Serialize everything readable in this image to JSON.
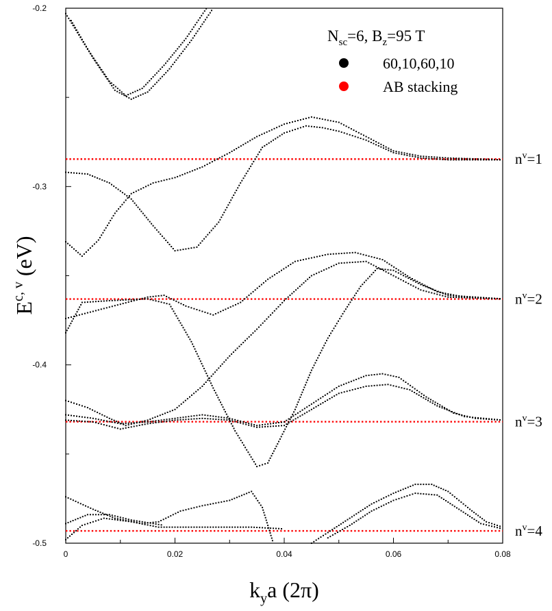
{
  "chart_data": {
    "type": "scatter",
    "xlabel": {
      "main": "k",
      "sub": "y",
      "rest": "a (2π)"
    },
    "ylabel": {
      "main": "E",
      "sup": "c, v",
      "rest": " (eV)"
    },
    "xlim": [
      0,
      0.08
    ],
    "ylim": [
      -0.5,
      -0.2
    ],
    "x_ticks": [
      "0",
      "0.02",
      "0.04",
      "0.06",
      "0.08"
    ],
    "x_tick_values": [
      0,
      0.02,
      0.04,
      0.06,
      0.08
    ],
    "y_ticks": [
      "-0.2",
      "-0.3",
      "-0.4",
      "-0.5"
    ],
    "y_tick_values": [
      -0.2,
      -0.3,
      -0.4,
      -0.5
    ],
    "grid": false,
    "legend": {
      "placement": "top-right",
      "title": {
        "n": "N",
        "nsub": "sc",
        "mid": "=6, B",
        "bsub": "z",
        "end": "=95 T"
      },
      "entries": [
        {
          "label": "60,10,60,10",
          "color": "#000000"
        },
        {
          "label": "AB stacking",
          "color": "#ff0000"
        }
      ]
    },
    "level_labels": [
      {
        "base": "n",
        "sup": "v",
        "rest": "=1",
        "energy": -0.2846
      },
      {
        "base": "n",
        "sup": "v",
        "rest": "=2",
        "energy": -0.3631
      },
      {
        "base": "n",
        "sup": "v",
        "rest": "=3",
        "energy": -0.4319
      },
      {
        "base": "n",
        "sup": "v",
        "rest": "=4",
        "energy": -0.4931
      }
    ],
    "series": [
      {
        "name": "60,10,60,10",
        "color": "#000000",
        "curves": [
          [
            [
              0,
              -0.203
            ],
            [
              0.004,
              -0.223
            ],
            [
              0.008,
              -0.241
            ],
            [
              0.011,
              -0.249
            ],
            [
              0.014,
              -0.245
            ],
            [
              0.018,
              -0.232
            ],
            [
              0.022,
              -0.217
            ],
            [
              0.026,
              -0.199
            ]
          ],
          [
            [
              0.001,
              -0.207
            ],
            [
              0.005,
              -0.228
            ],
            [
              0.009,
              -0.246
            ],
            [
              0.012,
              -0.251
            ],
            [
              0.015,
              -0.247
            ],
            [
              0.019,
              -0.234
            ],
            [
              0.023,
              -0.218
            ],
            [
              0.027,
              -0.2
            ]
          ],
          [
            [
              0,
              -0.292
            ],
            [
              0.004,
              -0.293
            ],
            [
              0.008,
              -0.298
            ],
            [
              0.012,
              -0.307
            ],
            [
              0.016,
              -0.322
            ],
            [
              0.02,
              -0.336
            ],
            [
              0.024,
              -0.334
            ],
            [
              0.028,
              -0.32
            ],
            [
              0.032,
              -0.298
            ],
            [
              0.036,
              -0.278
            ],
            [
              0.04,
              -0.27
            ],
            [
              0.044,
              -0.266
            ],
            [
              0.047,
              -0.267
            ],
            [
              0.05,
              -0.269
            ],
            [
              0.055,
              -0.274
            ],
            [
              0.06,
              -0.281
            ],
            [
              0.065,
              -0.284
            ],
            [
              0.07,
              -0.285
            ],
            [
              0.08,
              -0.285
            ]
          ],
          [
            [
              0,
              -0.331
            ],
            [
              0.003,
              -0.339
            ],
            [
              0.006,
              -0.33
            ],
            [
              0.009,
              -0.315
            ],
            [
              0.012,
              -0.304
            ],
            [
              0.016,
              -0.298
            ],
            [
              0.02,
              -0.295
            ],
            [
              0.025,
              -0.289
            ],
            [
              0.03,
              -0.281
            ],
            [
              0.035,
              -0.272
            ],
            [
              0.04,
              -0.265
            ],
            [
              0.045,
              -0.261
            ],
            [
              0.05,
              -0.264
            ],
            [
              0.055,
              -0.272
            ],
            [
              0.06,
              -0.28
            ],
            [
              0.065,
              -0.283
            ],
            [
              0.07,
              -0.284
            ],
            [
              0.08,
              -0.285
            ]
          ],
          [
            [
              0,
              -0.374
            ],
            [
              0.005,
              -0.37
            ],
            [
              0.01,
              -0.366
            ],
            [
              0.015,
              -0.362
            ],
            [
              0.018,
              -0.361
            ],
            [
              0.022,
              -0.367
            ],
            [
              0.027,
              -0.372
            ],
            [
              0.032,
              -0.365
            ],
            [
              0.037,
              -0.352
            ],
            [
              0.042,
              -0.342
            ],
            [
              0.048,
              -0.338
            ],
            [
              0.053,
              -0.337
            ],
            [
              0.058,
              -0.341
            ],
            [
              0.063,
              -0.351
            ],
            [
              0.068,
              -0.359
            ],
            [
              0.073,
              -0.362
            ],
            [
              0.08,
              -0.363
            ]
          ],
          [
            [
              0,
              -0.382
            ],
            [
              0.003,
              -0.365
            ],
            [
              0.008,
              -0.364
            ],
            [
              0.015,
              -0.363
            ],
            [
              0.019,
              -0.366
            ],
            [
              0.023,
              -0.387
            ],
            [
              0.027,
              -0.413
            ],
            [
              0.031,
              -0.437
            ],
            [
              0.035,
              -0.457
            ],
            [
              0.037,
              -0.455
            ],
            [
              0.039,
              -0.443
            ],
            [
              0.042,
              -0.425
            ],
            [
              0.045,
              -0.403
            ],
            [
              0.048,
              -0.385
            ],
            [
              0.051,
              -0.37
            ],
            [
              0.054,
              -0.356
            ],
            [
              0.057,
              -0.346
            ],
            [
              0.06,
              -0.347
            ],
            [
              0.065,
              -0.355
            ],
            [
              0.07,
              -0.361
            ],
            [
              0.08,
              -0.363
            ]
          ],
          [
            [
              0,
              -0.42
            ],
            [
              0.004,
              -0.424
            ],
            [
              0.008,
              -0.43
            ],
            [
              0.011,
              -0.434
            ],
            [
              0.015,
              -0.431
            ],
            [
              0.02,
              -0.425
            ],
            [
              0.025,
              -0.412
            ],
            [
              0.03,
              -0.395
            ],
            [
              0.035,
              -0.38
            ],
            [
              0.04,
              -0.364
            ],
            [
              0.045,
              -0.35
            ],
            [
              0.05,
              -0.343
            ],
            [
              0.055,
              -0.342
            ],
            [
              0.06,
              -0.35
            ],
            [
              0.065,
              -0.358
            ],
            [
              0.07,
              -0.362
            ],
            [
              0.08,
              -0.363
            ]
          ],
          [
            [
              0,
              -0.428
            ],
            [
              0.005,
              -0.43
            ],
            [
              0.01,
              -0.433
            ],
            [
              0.015,
              -0.432
            ],
            [
              0.02,
              -0.43
            ],
            [
              0.025,
              -0.428
            ],
            [
              0.03,
              -0.43
            ],
            [
              0.035,
              -0.434
            ],
            [
              0.04,
              -0.432
            ],
            [
              0.045,
              -0.422
            ],
            [
              0.05,
              -0.412
            ],
            [
              0.055,
              -0.406
            ],
            [
              0.058,
              -0.405
            ],
            [
              0.061,
              -0.407
            ],
            [
              0.066,
              -0.418
            ],
            [
              0.071,
              -0.427
            ],
            [
              0.075,
              -0.43
            ],
            [
              0.08,
              -0.431
            ]
          ],
          [
            [
              0,
              -0.431
            ],
            [
              0.005,
              -0.432
            ],
            [
              0.01,
              -0.436
            ],
            [
              0.015,
              -0.433
            ],
            [
              0.02,
              -0.431
            ],
            [
              0.025,
              -0.43
            ],
            [
              0.03,
              -0.431
            ],
            [
              0.035,
              -0.435
            ],
            [
              0.04,
              -0.434
            ],
            [
              0.045,
              -0.425
            ],
            [
              0.05,
              -0.416
            ],
            [
              0.055,
              -0.412
            ],
            [
              0.059,
              -0.411
            ],
            [
              0.063,
              -0.414
            ],
            [
              0.068,
              -0.423
            ],
            [
              0.073,
              -0.429
            ],
            [
              0.08,
              -0.431
            ]
          ],
          [
            [
              0,
              -0.474
            ],
            [
              0.005,
              -0.481
            ],
            [
              0.009,
              -0.486
            ],
            [
              0.014,
              -0.489
            ],
            [
              0.017,
              -0.488
            ],
            [
              0.021,
              -0.482
            ],
            [
              0.025,
              -0.479
            ],
            [
              0.03,
              -0.476
            ],
            [
              0.034,
              -0.471
            ],
            [
              0.036,
              -0.48
            ],
            [
              0.038,
              -0.5
            ]
          ],
          [
            [
              0,
              -0.489
            ],
            [
              0.004,
              -0.484
            ],
            [
              0.008,
              -0.484
            ],
            [
              0.012,
              -0.487
            ],
            [
              0.016,
              -0.489
            ],
            [
              0.018,
              -0.49
            ]
          ],
          [
            [
              0,
              -0.498
            ],
            [
              0.003,
              -0.49
            ],
            [
              0.007,
              -0.486
            ],
            [
              0.012,
              -0.488
            ],
            [
              0.017,
              -0.491
            ],
            [
              0.022,
              -0.491
            ],
            [
              0.028,
              -0.491
            ],
            [
              0.034,
              -0.491
            ],
            [
              0.04,
              -0.492
            ]
          ],
          [
            [
              0.045,
              -0.5
            ],
            [
              0.048,
              -0.494
            ],
            [
              0.052,
              -0.486
            ],
            [
              0.056,
              -0.478
            ],
            [
              0.06,
              -0.472
            ],
            [
              0.064,
              -0.467
            ],
            [
              0.067,
              -0.467
            ],
            [
              0.07,
              -0.471
            ],
            [
              0.074,
              -0.481
            ],
            [
              0.077,
              -0.488
            ],
            [
              0.08,
              -0.491
            ]
          ],
          [
            [
              0.048,
              -0.497
            ],
            [
              0.052,
              -0.49
            ],
            [
              0.056,
              -0.482
            ],
            [
              0.06,
              -0.476
            ],
            [
              0.064,
              -0.472
            ],
            [
              0.068,
              -0.473
            ],
            [
              0.072,
              -0.481
            ],
            [
              0.076,
              -0.489
            ],
            [
              0.08,
              -0.492
            ]
          ]
        ]
      },
      {
        "name": "AB stacking",
        "color": "#ff0000",
        "levels": [
          -0.2846,
          -0.3631,
          -0.4319,
          -0.4931
        ]
      }
    ]
  }
}
